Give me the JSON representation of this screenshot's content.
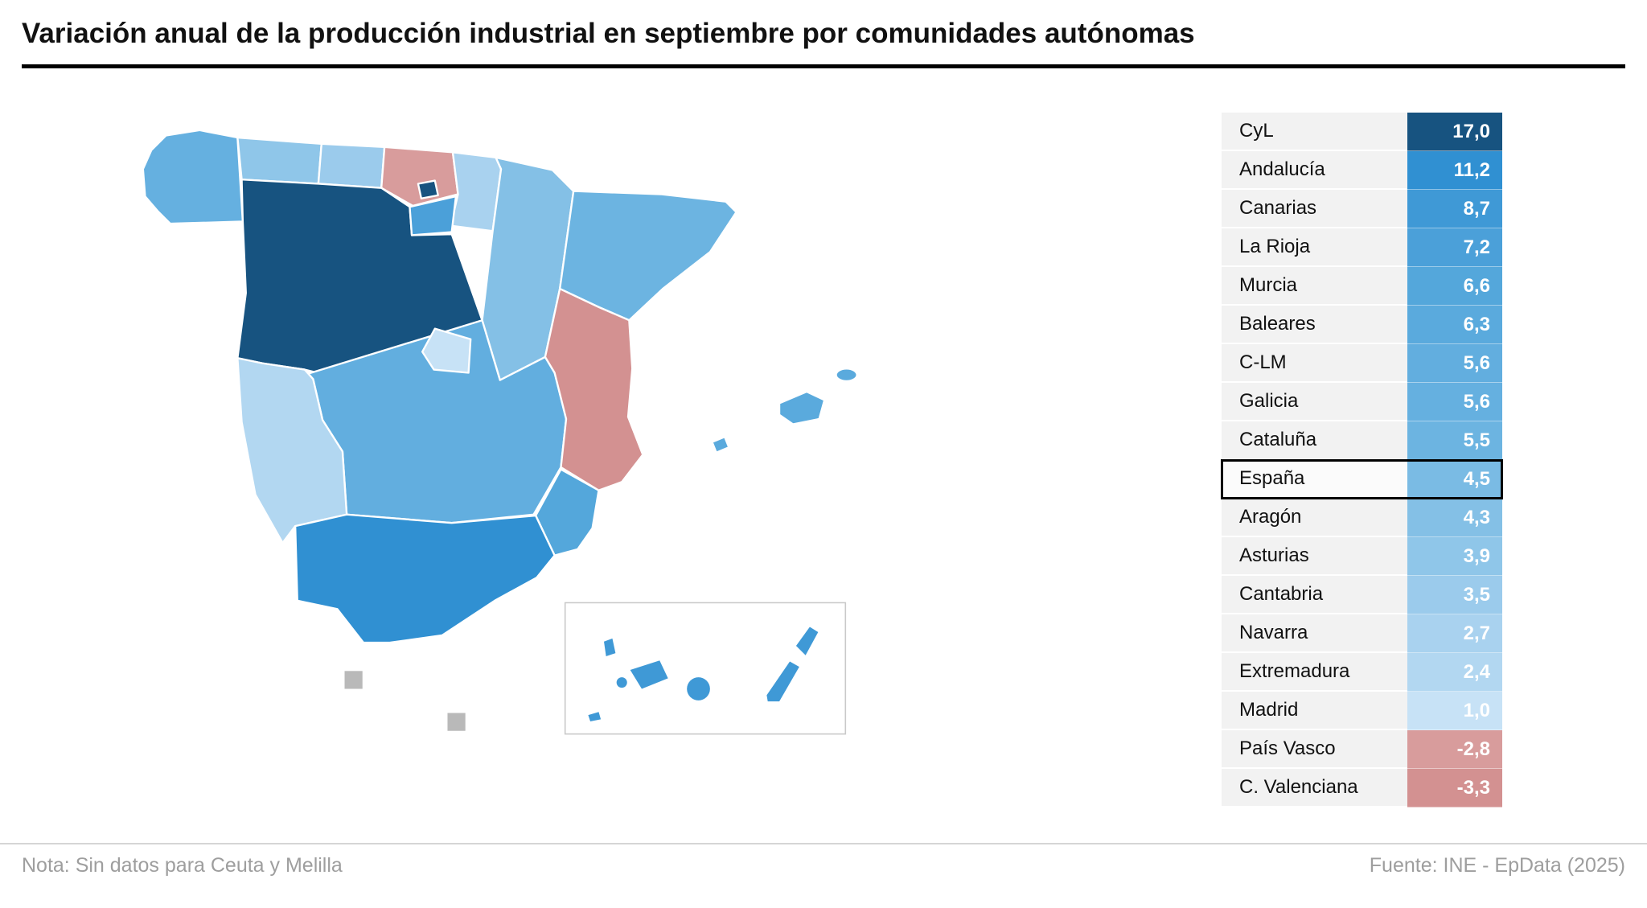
{
  "title": "Variación anual de la producción industrial en septiembre por comunidades autónomas",
  "footer": {
    "note": "Nota: Sin datos para Ceuta y Melilla",
    "source": "Fuente: INE - EpData (2025)"
  },
  "chart_data": {
    "type": "choropleth",
    "title": "Variación anual de la producción industrial en septiembre por comunidades autónomas",
    "unit": "%",
    "highlight_row": "España",
    "no_data_note": "Sin datos para Ceuta y Melilla",
    "rows": [
      {
        "label": "CyL",
        "value": "17,0",
        "numeric": 17.0,
        "color": "#175380"
      },
      {
        "label": "Andalucía",
        "value": "11,2",
        "numeric": 11.2,
        "color": "#3090d2"
      },
      {
        "label": "Canarias",
        "value": "8,7",
        "numeric": 8.7,
        "color": "#3f99d6"
      },
      {
        "label": "La Rioja",
        "value": "7,2",
        "numeric": 7.2,
        "color": "#4ba0d9"
      },
      {
        "label": "Murcia",
        "value": "6,6",
        "numeric": 6.6,
        "color": "#54a7db"
      },
      {
        "label": "Baleares",
        "value": "6,3",
        "numeric": 6.3,
        "color": "#5aaadd"
      },
      {
        "label": "C-LM",
        "value": "5,6",
        "numeric": 5.6,
        "color": "#62aedf"
      },
      {
        "label": "Galicia",
        "value": "5,6",
        "numeric": 5.6,
        "color": "#65b0e0"
      },
      {
        "label": "Cataluña",
        "value": "5,5",
        "numeric": 5.5,
        "color": "#6cb4e1"
      },
      {
        "label": "España",
        "value": "4,5",
        "numeric": 4.5,
        "color": "#7abbe4",
        "highlight": true
      },
      {
        "label": "Aragón",
        "value": "4,3",
        "numeric": 4.3,
        "color": "#84c0e6"
      },
      {
        "label": "Asturias",
        "value": "3,9",
        "numeric": 3.9,
        "color": "#8fc6e9"
      },
      {
        "label": "Cantabria",
        "value": "3,5",
        "numeric": 3.5,
        "color": "#9bcbec"
      },
      {
        "label": "Navarra",
        "value": "2,7",
        "numeric": 2.7,
        "color": "#a9d2ef"
      },
      {
        "label": "Extremadura",
        "value": "2,4",
        "numeric": 2.4,
        "color": "#b2d7f1"
      },
      {
        "label": "Madrid",
        "value": "1,0",
        "numeric": 1.0,
        "color": "#c7e2f6"
      },
      {
        "label": "País Vasco",
        "value": "-2,8",
        "numeric": -2.8,
        "color": "#d89c9c"
      },
      {
        "label": "C. Valenciana",
        "value": "-3,3",
        "numeric": -3.3,
        "color": "#d39191"
      }
    ]
  },
  "map": {
    "no_data_color": "#b9b9b9",
    "regions": [
      {
        "id": "galicia",
        "name": "Galicia",
        "color": "#65b0e0"
      },
      {
        "id": "asturias",
        "name": "Asturias",
        "color": "#8fc6e9"
      },
      {
        "id": "cantabria",
        "name": "Cantabria",
        "color": "#9bcbec"
      },
      {
        "id": "pais-vasco",
        "name": "País Vasco",
        "color": "#d89c9c"
      },
      {
        "id": "navarra",
        "name": "Navarra",
        "color": "#a9d2ef"
      },
      {
        "id": "la-rioja",
        "name": "La Rioja",
        "color": "#4ba0d9"
      },
      {
        "id": "aragon",
        "name": "Aragón",
        "color": "#84c0e6"
      },
      {
        "id": "cataluna",
        "name": "Cataluña",
        "color": "#6cb4e1"
      },
      {
        "id": "cyl",
        "name": "CyL",
        "color": "#175380"
      },
      {
        "id": "cyl-enclave",
        "name": "CyL (enclave)",
        "color": "#175380"
      },
      {
        "id": "madrid",
        "name": "Madrid",
        "color": "#c7e2f6"
      },
      {
        "id": "clm",
        "name": "C-LM",
        "color": "#62aedf"
      },
      {
        "id": "extremadura",
        "name": "Extremadura",
        "color": "#b2d7f1"
      },
      {
        "id": "c-valenciana",
        "name": "C. Valenciana",
        "color": "#d39191"
      },
      {
        "id": "murcia",
        "name": "Murcia",
        "color": "#54a7db"
      },
      {
        "id": "andalucia",
        "name": "Andalucía",
        "color": "#3090d2"
      },
      {
        "id": "baleares",
        "name": "Baleares",
        "color": "#5aaadd"
      },
      {
        "id": "canarias",
        "name": "Canarias",
        "color": "#3f99d6"
      },
      {
        "id": "ceuta",
        "name": "Ceuta",
        "color": "#b9b9b9"
      },
      {
        "id": "melilla",
        "name": "Melilla",
        "color": "#b9b9b9"
      }
    ]
  }
}
